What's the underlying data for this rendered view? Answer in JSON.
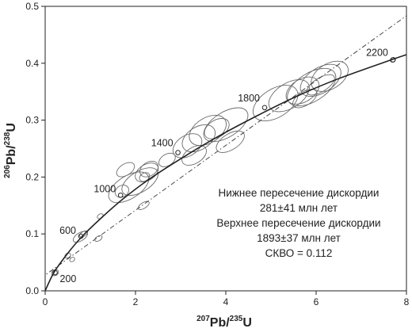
{
  "chart_data": {
    "type": "scatter",
    "subtype": "concordia",
    "xlabel": {
      "mass": "207",
      "element": "Pb",
      "sep": "/",
      "mass2": "235",
      "element2": "U"
    },
    "ylabel": {
      "mass": "206",
      "element": "Pb",
      "sep": "/",
      "mass2": "238",
      "element2": "U"
    },
    "xlim": [
      0,
      8
    ],
    "ylim": [
      0,
      0.5
    ],
    "x_ticks": [
      0,
      2,
      4,
      6,
      8
    ],
    "x_tick_labels": [
      "0",
      "2",
      "4",
      "6",
      "8"
    ],
    "y_ticks": [
      0,
      0.1,
      0.2,
      0.3,
      0.4,
      0.5
    ],
    "y_tick_labels": [
      "0.0",
      "0.1",
      "0.2",
      "0.3",
      "0.4",
      "0.5"
    ],
    "grid": false,
    "concordia": {
      "x": [
        0,
        0.2,
        0.5,
        0.8,
        1.2,
        1.7,
        2.3,
        3.0,
        3.8,
        4.7,
        5.6,
        6.5,
        7.7,
        8.0
      ],
      "y": [
        0,
        0.033,
        0.066,
        0.094,
        0.125,
        0.16,
        0.196,
        0.232,
        0.27,
        0.308,
        0.343,
        0.373,
        0.407,
        0.415
      ]
    },
    "age_markers": [
      {
        "label": "200",
        "x": 0.22,
        "y": 0.032
      },
      {
        "label": "600",
        "x": 0.79,
        "y": 0.096
      },
      {
        "label": "1000",
        "x": 1.67,
        "y": 0.168
      },
      {
        "label": "1400",
        "x": 2.94,
        "y": 0.243
      },
      {
        "label": "1800",
        "x": 4.86,
        "y": 0.322
      },
      {
        "label": "2200",
        "x": 7.7,
        "y": 0.406
      }
    ],
    "discordia": {
      "lower_intercept": {
        "x": 0.32,
        "y": 0.045
      },
      "upper_intercept": {
        "x": 5.45,
        "y": 0.34
      },
      "x": [
        -0.1,
        8.0
      ],
      "y": [
        0.022,
        0.4835
      ]
    },
    "error_ellipses": [
      {
        "x": 0.22,
        "y": 0.032,
        "rx": 0.08,
        "ry": 0.005,
        "angle": 0
      },
      {
        "x": 0.5,
        "y": 0.062,
        "rx": 0.07,
        "ry": 0.004,
        "angle": 0
      },
      {
        "x": 0.6,
        "y": 0.055,
        "rx": 0.06,
        "ry": 0.003,
        "angle": 0
      },
      {
        "x": 0.78,
        "y": 0.095,
        "rx": 0.18,
        "ry": 0.007,
        "angle": 0
      },
      {
        "x": 0.85,
        "y": 0.1,
        "rx": 0.1,
        "ry": 0.004,
        "angle": 0
      },
      {
        "x": 1.18,
        "y": 0.092,
        "rx": 0.09,
        "ry": 0.004,
        "angle": 0
      },
      {
        "x": 1.22,
        "y": 0.131,
        "rx": 0.07,
        "ry": 0.004,
        "angle": 0
      },
      {
        "x": 1.7,
        "y": 0.175,
        "rx": 0.16,
        "ry": 0.01,
        "angle": 0
      },
      {
        "x": 1.85,
        "y": 0.182,
        "rx": 0.5,
        "ry": 0.02,
        "angle": 0
      },
      {
        "x": 2.1,
        "y": 0.192,
        "rx": 0.45,
        "ry": 0.018,
        "angle": 0
      },
      {
        "x": 2.25,
        "y": 0.208,
        "rx": 0.28,
        "ry": 0.014,
        "angle": 0
      },
      {
        "x": 2.3,
        "y": 0.214,
        "rx": 0.22,
        "ry": 0.012,
        "angle": 0
      },
      {
        "x": 2.2,
        "y": 0.2,
        "rx": 0.12,
        "ry": 0.007,
        "angle": 0
      },
      {
        "x": 1.78,
        "y": 0.213,
        "rx": 0.22,
        "ry": 0.01,
        "angle": 0
      },
      {
        "x": 2.18,
        "y": 0.15,
        "rx": 0.14,
        "ry": 0.005,
        "angle": 0
      },
      {
        "x": 2.7,
        "y": 0.23,
        "rx": 0.2,
        "ry": 0.01,
        "angle": 0
      },
      {
        "x": 3.15,
        "y": 0.255,
        "rx": 0.35,
        "ry": 0.018,
        "angle": 0
      },
      {
        "x": 3.4,
        "y": 0.268,
        "rx": 0.4,
        "ry": 0.02,
        "angle": 0
      },
      {
        "x": 3.6,
        "y": 0.282,
        "rx": 0.45,
        "ry": 0.022,
        "angle": 0
      },
      {
        "x": 3.8,
        "y": 0.285,
        "rx": 0.3,
        "ry": 0.015,
        "angle": 0
      },
      {
        "x": 4.0,
        "y": 0.292,
        "rx": 0.55,
        "ry": 0.022,
        "angle": 0
      },
      {
        "x": 3.3,
        "y": 0.238,
        "rx": 0.3,
        "ry": 0.014,
        "angle": 0
      },
      {
        "x": 4.1,
        "y": 0.262,
        "rx": 0.35,
        "ry": 0.014,
        "angle": 0
      },
      {
        "x": 5.1,
        "y": 0.33,
        "rx": 0.55,
        "ry": 0.025,
        "angle": 0
      },
      {
        "x": 5.4,
        "y": 0.343,
        "rx": 0.5,
        "ry": 0.022,
        "angle": 0
      },
      {
        "x": 5.7,
        "y": 0.352,
        "rx": 0.4,
        "ry": 0.02,
        "angle": 0
      },
      {
        "x": 5.9,
        "y": 0.358,
        "rx": 0.6,
        "ry": 0.025,
        "angle": 0
      },
      {
        "x": 6.1,
        "y": 0.37,
        "rx": 0.5,
        "ry": 0.022,
        "angle": 0
      },
      {
        "x": 6.3,
        "y": 0.377,
        "rx": 0.45,
        "ry": 0.022,
        "angle": 0
      },
      {
        "x": 5.75,
        "y": 0.338,
        "rx": 0.3,
        "ry": 0.012,
        "angle": 0
      },
      {
        "x": 6.1,
        "y": 0.362,
        "rx": 0.35,
        "ry": 0.012,
        "angle": 0
      },
      {
        "x": 7.7,
        "y": 0.406,
        "rx": 0.06,
        "ry": 0.004,
        "angle": 0
      }
    ],
    "annotation": {
      "lines": [
        "Нижнее пересечение дискордии",
        "281±41 млн лет",
        "Верхнее пересечение дискордии",
        "1893±37 млн лет",
        "СКВО = 0.112"
      ]
    },
    "colors": {
      "concordia": "#222222",
      "discordia": "#444444",
      "ellipse": "#6a6a6a",
      "axis": "#222222",
      "text": "#222222"
    }
  }
}
